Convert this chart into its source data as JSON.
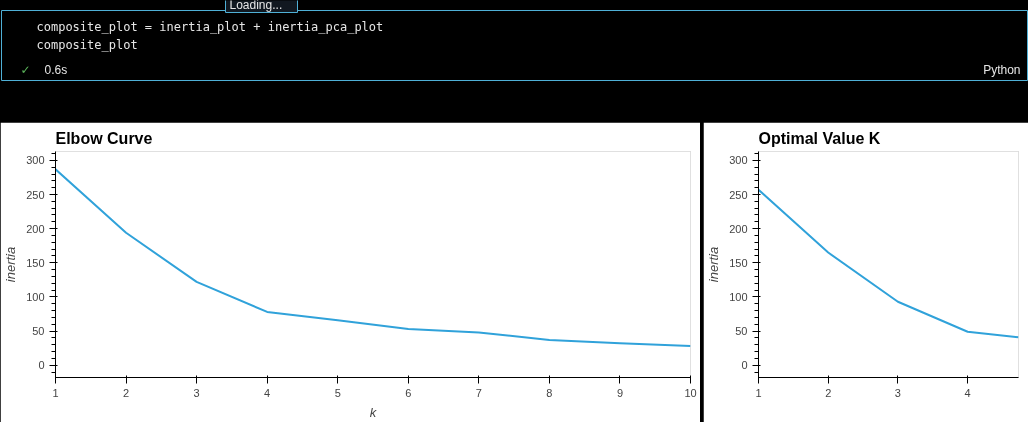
{
  "chart_data": [
    {
      "type": "other",
      "annotations": [
        "Loading...",
        "composite_plot = inertia_plot + inertia_pca_plot",
        "composite_plot",
        "✓",
        "0.6s",
        "Python"
      ]
    },
    {
      "type": "line",
      "title": "Elbow Curve",
      "xlabel": "k",
      "ylabel": "inertia",
      "x": [
        1,
        2,
        3,
        4,
        5,
        6,
        7,
        8,
        9,
        10
      ],
      "series": [
        {
          "color": "#30a2da",
          "values": [
            287,
            194,
            122,
            78,
            66,
            53,
            48,
            37,
            32,
            28
          ]
        }
      ],
      "xlim": [
        1,
        10
      ],
      "xticks": [
        1,
        2,
        3,
        4,
        5,
        6,
        7,
        8,
        9,
        10
      ],
      "ylim": [
        -18,
        313
      ],
      "yticks": [
        0,
        50,
        100,
        150,
        200,
        250,
        300
      ],
      "grid": false
    },
    {
      "type": "line",
      "title": "Optimal Value K",
      "ylabel": "inertia",
      "x": [
        1,
        2,
        3,
        4,
        4.73
      ],
      "series": [
        {
          "color": "#30a2da",
          "values": [
            257,
            165,
            93,
            49,
            41
          ]
        }
      ],
      "xlim": [
        1,
        4.73
      ],
      "xticks": [
        1,
        2,
        3,
        4
      ],
      "ylim": [
        -18,
        313
      ],
      "yticks": [
        0,
        50,
        100,
        150,
        200,
        250,
        300
      ],
      "grid": false
    }
  ]
}
